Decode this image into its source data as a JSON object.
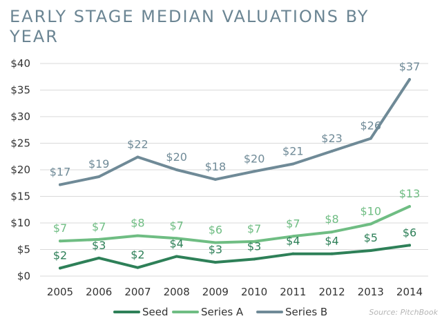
{
  "chart_data": {
    "type": "line",
    "title": "EARLY STAGE MEDIAN VALUATIONS BY YEAR",
    "xlabel": "",
    "ylabel": "",
    "categories": [
      "2005",
      "2006",
      "2007",
      "2008",
      "2009",
      "2010",
      "2011",
      "2012",
      "2013",
      "2014"
    ],
    "ylim": [
      0,
      40
    ],
    "yticks": [
      0,
      5,
      10,
      15,
      20,
      25,
      30,
      35,
      40
    ],
    "ytick_labels": [
      "$0",
      "$5",
      "$10",
      "$15",
      "$20",
      "$25",
      "$30",
      "$35",
      "$40"
    ],
    "grid": true,
    "legend_position": "bottom-center",
    "source": "Source: PitchBook",
    "series": [
      {
        "name": "Seed",
        "color": "#2e8058",
        "values": [
          1.5,
          3.4,
          1.6,
          3.7,
          2.6,
          3.2,
          4.2,
          4.2,
          4.8,
          5.8
        ],
        "labels": [
          "$2",
          "$3",
          "$2",
          "$4",
          "$3",
          "$3",
          "$4",
          "$4",
          "$5",
          "$6"
        ]
      },
      {
        "name": "Series A",
        "color": "#6fbd83",
        "values": [
          6.6,
          6.9,
          7.6,
          7.1,
          6.3,
          6.5,
          7.5,
          8.3,
          9.8,
          13.1
        ],
        "labels": [
          "$7",
          "$7",
          "$8",
          "$7",
          "$6",
          "$7",
          "$7",
          "$8",
          "$10",
          "$13"
        ]
      },
      {
        "name": "Series B",
        "color": "#6f8a97",
        "values": [
          17.2,
          18.7,
          22.4,
          20.0,
          18.2,
          19.7,
          21.1,
          23.5,
          25.9,
          37.0
        ],
        "labels": [
          "$17",
          "$19",
          "$22",
          "$20",
          "$18",
          "$20",
          "$21",
          "$23",
          "$26",
          "$37"
        ]
      }
    ]
  }
}
